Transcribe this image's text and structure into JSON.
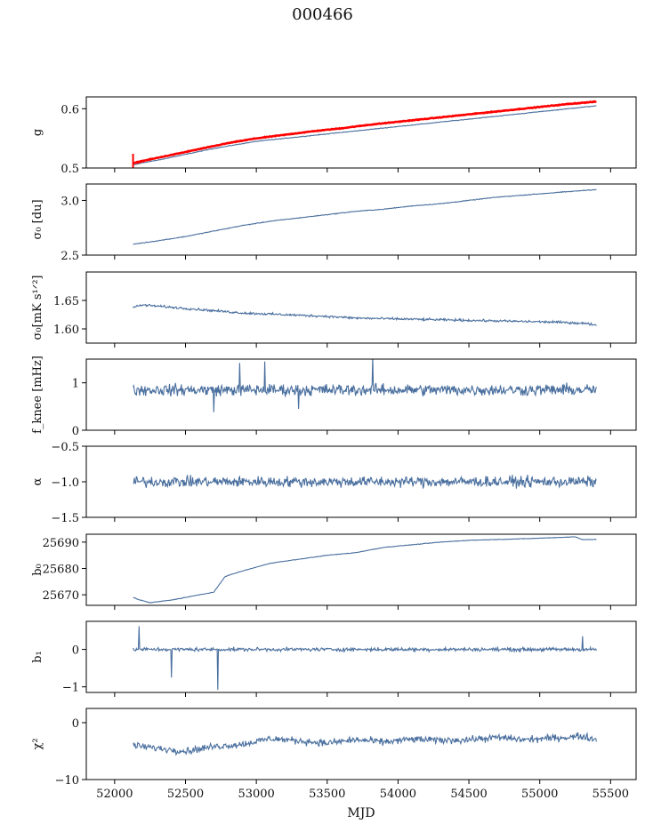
{
  "suptitle": "000466",
  "xlabel": "MJD",
  "line_color": "#4a6f9e",
  "highlight_color": "#ff0000",
  "chart_data": {
    "type": "line",
    "shared_x": {
      "range": [
        51800,
        55680
      ],
      "ticks": [
        52000,
        52500,
        53000,
        53500,
        54000,
        54500,
        55000,
        55500
      ],
      "tick_labels": [
        "52000",
        "52500",
        "53000",
        "53500",
        "54000",
        "54500",
        "55000",
        "55500"
      ],
      "label": "MJD",
      "data_range": [
        52120,
        55400
      ]
    },
    "panels": [
      {
        "id": "g",
        "ylabel": "g",
        "ylim": [
          0.5,
          0.62
        ],
        "yticks": [
          0.5,
          0.6
        ],
        "ytick_labels": [
          "0.5",
          "0.6"
        ],
        "series": [
          {
            "color": "#4a6f9e",
            "x": [
              52130,
              52200,
              52300,
              52400,
              52500,
              52600,
              52700,
              52800,
              52900,
              53000,
              53200,
              53400,
              53600,
              53800,
              54000,
              54200,
              54400,
              54600,
              54800,
              55000,
              55200,
              55400
            ],
            "y": [
              0.505,
              0.509,
              0.513,
              0.518,
              0.523,
              0.528,
              0.533,
              0.537,
              0.541,
              0.545,
              0.55,
              0.555,
              0.56,
              0.565,
              0.57,
              0.575,
              0.58,
              0.585,
              0.59,
              0.595,
              0.6,
              0.605
            ],
            "noise": 0.0008
          },
          {
            "color": "#ff0000",
            "thick": true,
            "x": [
              52130,
              52200,
              52300,
              52400,
              52500,
              52600,
              52700,
              52800,
              52900,
              53000,
              53200,
              53400,
              53600,
              53800,
              54000,
              54200,
              54400,
              54600,
              54800,
              55000,
              55200,
              55400
            ],
            "y": [
              0.508,
              0.512,
              0.517,
              0.522,
              0.527,
              0.532,
              0.537,
              0.542,
              0.546,
              0.55,
              0.556,
              0.562,
              0.567,
              0.573,
              0.578,
              0.583,
              0.588,
              0.593,
              0.598,
              0.603,
              0.608,
              0.612
            ],
            "noise": 0.0008,
            "spike": [
              52130,
              0.5,
              0.524
            ]
          }
        ]
      },
      {
        "id": "sigma0-du",
        "ylabel": "σ₀ [du]",
        "ylim": [
          2.5,
          3.15
        ],
        "yticks": [
          2.5,
          3.0
        ],
        "ytick_labels": [
          "2.5",
          "3.0"
        ],
        "series": [
          {
            "color": "#4a6f9e",
            "x": [
              52130,
              52300,
              52500,
              52700,
              52900,
              53100,
              53300,
              53500,
              53700,
              53900,
              54100,
              54300,
              54500,
              54700,
              54900,
              55100,
              55300,
              55400
            ],
            "y": [
              2.6,
              2.63,
              2.67,
              2.72,
              2.77,
              2.81,
              2.84,
              2.87,
              2.9,
              2.92,
              2.95,
              2.97,
              3.0,
              3.03,
              3.05,
              3.07,
              3.09,
              3.1
            ],
            "noise": 0.005
          }
        ]
      },
      {
        "id": "sigma0-mK",
        "ylabel": "σ₀[mK s¹ᐟ²]",
        "ylim": [
          1.575,
          1.7
        ],
        "yticks": [
          1.6,
          1.65
        ],
        "ytick_labels": [
          "1.60",
          "1.65"
        ],
        "series": [
          {
            "color": "#4a6f9e",
            "x": [
              52130,
              52200,
              52300,
              52500,
              52700,
              52900,
              53100,
              53300,
              53500,
              53700,
              53900,
              54100,
              54300,
              54500,
              54700,
              54900,
              55100,
              55300,
              55400
            ],
            "y": [
              1.638,
              1.642,
              1.64,
              1.636,
              1.632,
              1.628,
              1.626,
              1.624,
              1.622,
              1.619,
              1.618,
              1.617,
              1.616,
              1.615,
              1.614,
              1.613,
              1.612,
              1.61,
              1.607
            ],
            "noise": 0.003
          }
        ]
      },
      {
        "id": "fknee",
        "ylabel": "f_knee [mHz]",
        "ylim": [
          0,
          1.5
        ],
        "yticks": [
          0,
          1
        ],
        "ytick_labels": [
          "0",
          "1"
        ],
        "series": [
          {
            "color": "#4a6f9e",
            "x": [
              52130,
              55400
            ],
            "y": [
              0.85,
              0.85
            ],
            "noise": 0.18,
            "spikes": [
              [
                52880,
                1.42
              ],
              [
                53060,
                1.45
              ],
              [
                53820,
                1.55
              ],
              [
                53300,
                0.45
              ],
              [
                52700,
                0.38
              ]
            ]
          }
        ]
      },
      {
        "id": "alpha",
        "ylabel": "α",
        "ylim": [
          -1.5,
          -0.5
        ],
        "yticks": [
          -1.5,
          -1.0,
          -0.5
        ],
        "ytick_labels": [
          "−1.5",
          "−1.0",
          "−0.5"
        ],
        "series": [
          {
            "color": "#4a6f9e",
            "x": [
              52130,
              55400
            ],
            "y": [
              -1.0,
              -1.0
            ],
            "noise": 0.11
          }
        ]
      },
      {
        "id": "b0",
        "ylabel": "b₀",
        "ylim": [
          25666,
          25693
        ],
        "yticks": [
          25670,
          25680,
          25690
        ],
        "ytick_labels": [
          "25670",
          "25680",
          "25690"
        ],
        "series": [
          {
            "color": "#4a6f9e",
            "x": [
              52130,
              52180,
              52250,
              52400,
              52550,
              52700,
              52740,
              52780,
              52900,
              53100,
              53300,
              53500,
              53700,
              53900,
              54100,
              54300,
              54500,
              54700,
              54900,
              55100,
              55250,
              55300,
              55400
            ],
            "y": [
              25669,
              25668,
              25667,
              25668,
              25669.5,
              25671,
              25674,
              25677,
              25679,
              25682,
              25683.5,
              25685,
              25686,
              25688,
              25689,
              25690,
              25690.7,
              25691,
              25691.3,
              25691.7,
              25692,
              25691,
              25691
            ],
            "noise": 0.15
          }
        ]
      },
      {
        "id": "b1",
        "ylabel": "b₁",
        "ylim": [
          -1.15,
          0.75
        ],
        "yticks": [
          -1,
          0
        ],
        "ytick_labels": [
          "−1",
          "0"
        ],
        "series": [
          {
            "color": "#4a6f9e",
            "x": [
              52130,
              55400
            ],
            "y": [
              0,
              0
            ],
            "noise": 0.07,
            "spikes": [
              [
                52170,
                0.62
              ],
              [
                52400,
                -0.75
              ],
              [
                52730,
                -1.08
              ],
              [
                55300,
                0.35
              ]
            ]
          }
        ]
      },
      {
        "id": "chi2",
        "ylabel": "χ²",
        "ylim": [
          -10,
          2.5
        ],
        "yticks": [
          -10,
          0
        ],
        "ytick_labels": [
          "−10",
          "0"
        ],
        "series": [
          {
            "color": "#4a6f9e",
            "x": [
              52130,
              52300,
              52500,
              52700,
              52900,
              53100,
              53300,
              53500,
              53700,
              53900,
              54100,
              54300,
              54500,
              54700,
              54900,
              55100,
              55300,
              55400
            ],
            "y": [
              -4,
              -4.5,
              -5,
              -4.2,
              -3.8,
              -2.8,
              -3.2,
              -3.6,
              -3.0,
              -3.4,
              -2.9,
              -3.1,
              -3.0,
              -2.6,
              -3.0,
              -2.7,
              -2.4,
              -3.0
            ],
            "noise": 0.9
          }
        ]
      }
    ]
  }
}
